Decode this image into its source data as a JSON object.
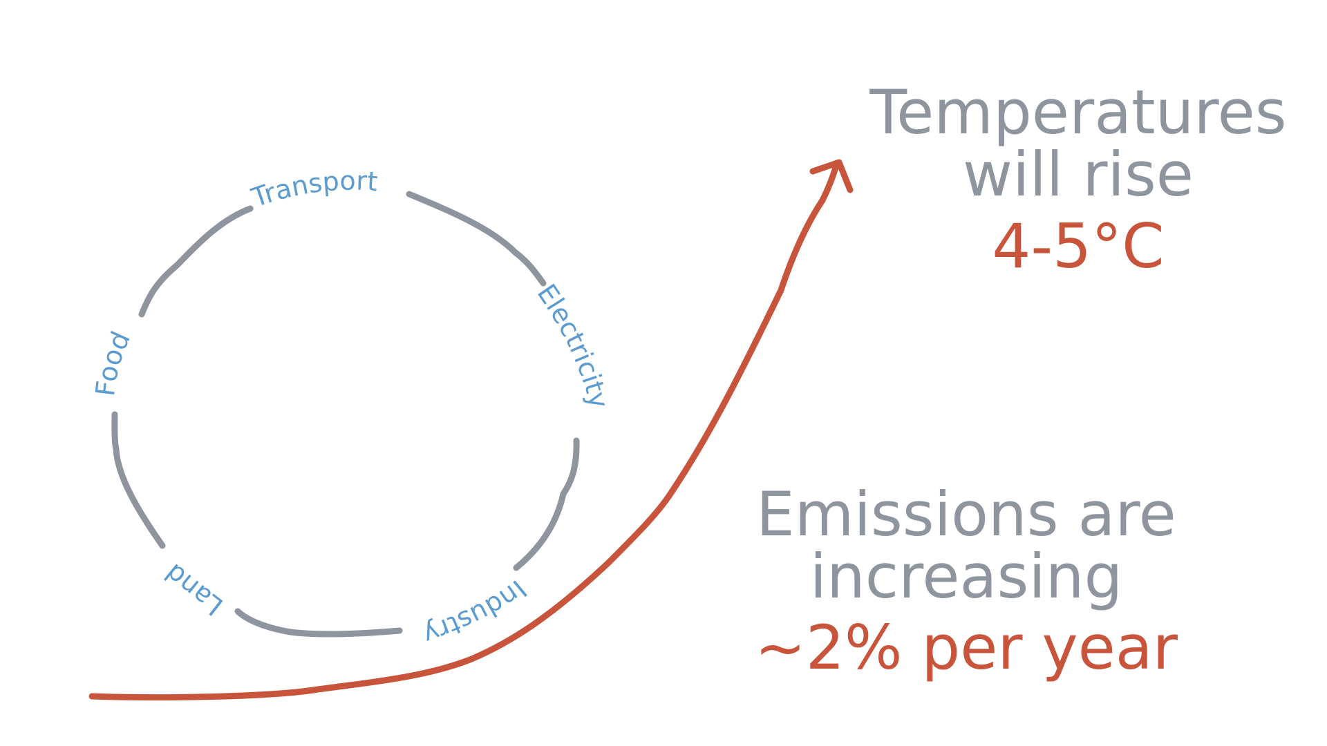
{
  "sectors": {
    "transport": "Transport",
    "electricity": "Electricity",
    "industry": "Industry",
    "land": "Land",
    "food": "Food"
  },
  "temperature": {
    "line1": "Temperatures",
    "line2": "will rise",
    "value": "4-5°C"
  },
  "emissions": {
    "line1": "Emissions are",
    "line2": "increasing",
    "value": "~2% per year"
  },
  "colors": {
    "cycle_stroke": "#8e959e",
    "sector_text": "#5b9bd0",
    "emphasis_red": "#c8543c",
    "heading_grey": "#8e959e"
  },
  "icons": {
    "curve_arrow": "arrow-head-icon"
  }
}
